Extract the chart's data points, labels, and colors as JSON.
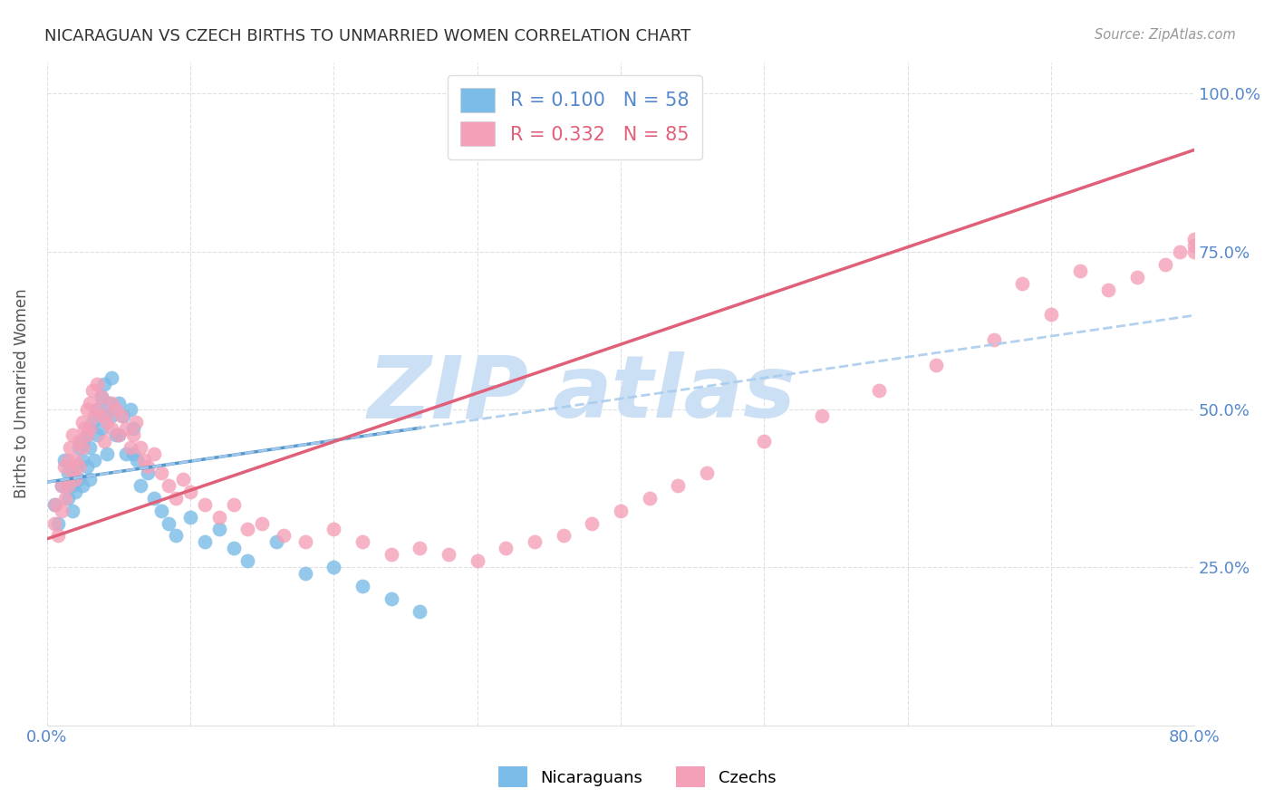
{
  "title": "NICARAGUAN VS CZECH BIRTHS TO UNMARRIED WOMEN CORRELATION CHART",
  "source": "Source: ZipAtlas.com",
  "ylabel": "Births to Unmarried Women",
  "legend1_r": "0.100",
  "legend1_n": "58",
  "legend2_r": "0.332",
  "legend2_n": "85",
  "blue_color": "#7bbce8",
  "pink_color": "#f4a0b8",
  "blue_line_color": "#5599cc",
  "pink_line_color": "#e0607a",
  "axis_color": "#5588cc",
  "grid_color": "#e0e0e0",
  "watermark_color": "#cce0f5",
  "xlim": [
    0.0,
    0.8
  ],
  "ylim": [
    0.0,
    1.05
  ],
  "ytick_vals": [
    0.25,
    0.5,
    0.75,
    1.0
  ],
  "ytick_labels": [
    "25.0%",
    "50.0%",
    "75.0%",
    "100.0%"
  ],
  "xtick_vals": [
    0.0,
    0.1,
    0.2,
    0.3,
    0.4,
    0.5,
    0.6,
    0.7,
    0.8
  ],
  "nic_x": [
    0.005,
    0.008,
    0.01,
    0.012,
    0.015,
    0.015,
    0.018,
    0.018,
    0.02,
    0.02,
    0.022,
    0.022,
    0.025,
    0.025,
    0.025,
    0.028,
    0.028,
    0.03,
    0.03,
    0.03,
    0.032,
    0.033,
    0.035,
    0.035,
    0.038,
    0.038,
    0.04,
    0.04,
    0.042,
    0.043,
    0.045,
    0.045,
    0.048,
    0.05,
    0.05,
    0.053,
    0.055,
    0.058,
    0.06,
    0.06,
    0.063,
    0.065,
    0.07,
    0.075,
    0.08,
    0.085,
    0.09,
    0.1,
    0.11,
    0.12,
    0.13,
    0.14,
    0.16,
    0.18,
    0.2,
    0.22,
    0.24,
    0.26
  ],
  "nic_y": [
    0.35,
    0.32,
    0.38,
    0.42,
    0.36,
    0.4,
    0.34,
    0.38,
    0.41,
    0.37,
    0.44,
    0.39,
    0.45,
    0.42,
    0.38,
    0.46,
    0.41,
    0.47,
    0.44,
    0.39,
    0.48,
    0.42,
    0.5,
    0.46,
    0.52,
    0.47,
    0.54,
    0.49,
    0.43,
    0.51,
    0.55,
    0.49,
    0.46,
    0.51,
    0.46,
    0.49,
    0.43,
    0.5,
    0.47,
    0.43,
    0.42,
    0.38,
    0.4,
    0.36,
    0.34,
    0.32,
    0.3,
    0.33,
    0.29,
    0.31,
    0.28,
    0.26,
    0.29,
    0.24,
    0.25,
    0.22,
    0.2,
    0.18
  ],
  "czech_x": [
    0.005,
    0.006,
    0.008,
    0.01,
    0.01,
    0.012,
    0.013,
    0.015,
    0.015,
    0.016,
    0.018,
    0.018,
    0.02,
    0.02,
    0.022,
    0.022,
    0.025,
    0.025,
    0.026,
    0.028,
    0.028,
    0.03,
    0.03,
    0.032,
    0.033,
    0.035,
    0.035,
    0.038,
    0.04,
    0.04,
    0.042,
    0.045,
    0.045,
    0.048,
    0.05,
    0.052,
    0.055,
    0.058,
    0.06,
    0.062,
    0.065,
    0.068,
    0.07,
    0.075,
    0.08,
    0.085,
    0.09,
    0.095,
    0.1,
    0.11,
    0.12,
    0.13,
    0.14,
    0.15,
    0.165,
    0.18,
    0.2,
    0.22,
    0.24,
    0.26,
    0.28,
    0.3,
    0.32,
    0.34,
    0.36,
    0.38,
    0.4,
    0.42,
    0.44,
    0.46,
    0.5,
    0.54,
    0.58,
    0.62,
    0.66,
    0.7,
    0.74,
    0.76,
    0.78,
    0.79,
    0.8,
    0.8,
    0.8,
    0.72,
    0.68
  ],
  "czech_y": [
    0.32,
    0.35,
    0.3,
    0.38,
    0.34,
    0.41,
    0.36,
    0.42,
    0.38,
    0.44,
    0.4,
    0.46,
    0.42,
    0.39,
    0.45,
    0.41,
    0.48,
    0.44,
    0.47,
    0.5,
    0.46,
    0.51,
    0.47,
    0.53,
    0.49,
    0.54,
    0.5,
    0.52,
    0.49,
    0.45,
    0.48,
    0.51,
    0.47,
    0.5,
    0.46,
    0.49,
    0.47,
    0.44,
    0.46,
    0.48,
    0.44,
    0.42,
    0.41,
    0.43,
    0.4,
    0.38,
    0.36,
    0.39,
    0.37,
    0.35,
    0.33,
    0.35,
    0.31,
    0.32,
    0.3,
    0.29,
    0.31,
    0.29,
    0.27,
    0.28,
    0.27,
    0.26,
    0.28,
    0.29,
    0.3,
    0.32,
    0.34,
    0.36,
    0.38,
    0.4,
    0.45,
    0.49,
    0.53,
    0.57,
    0.61,
    0.65,
    0.69,
    0.71,
    0.73,
    0.75,
    0.77,
    0.75,
    0.76,
    0.72,
    0.7
  ]
}
